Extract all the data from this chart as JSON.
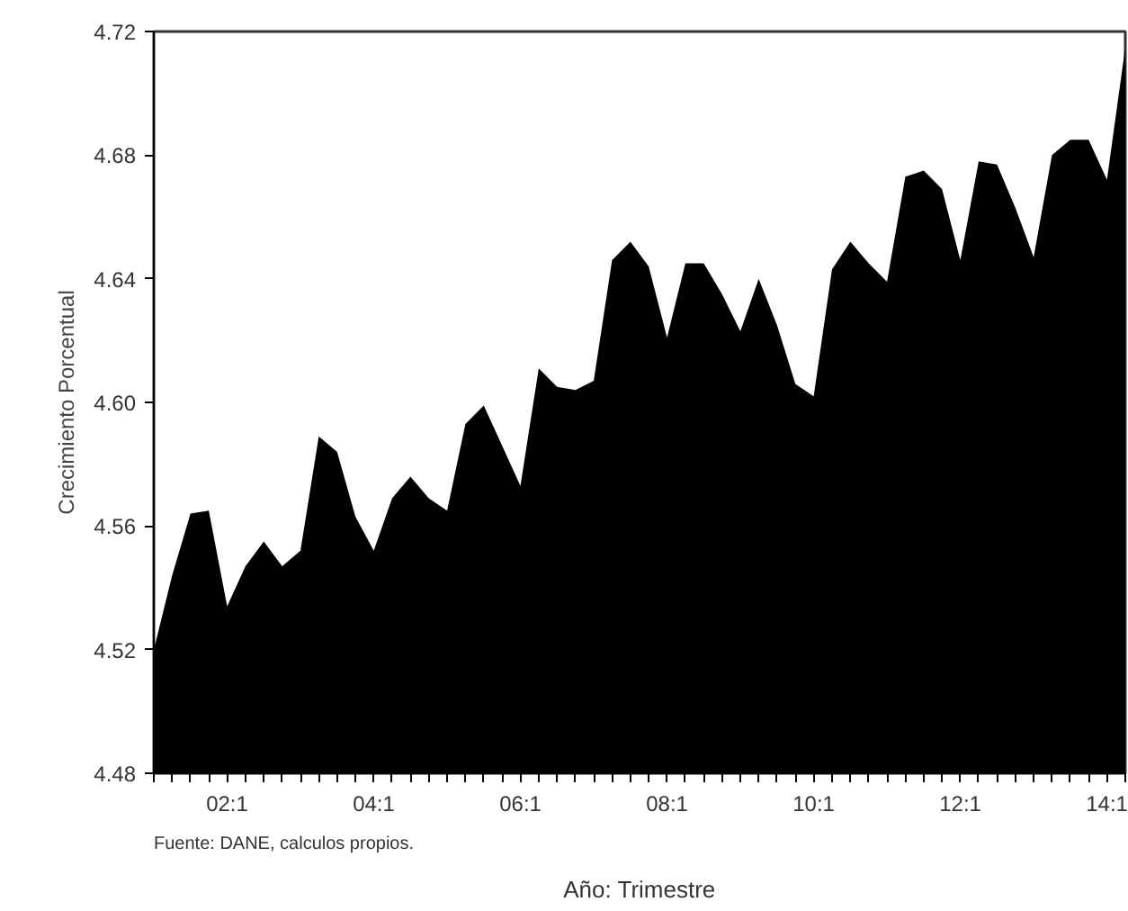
{
  "chart_data": {
    "type": "area",
    "xlabel": "Año: Trimestre",
    "ylabel": "Crecimiento Porcentual",
    "annotations": [
      "Fuente: DANE, calculos propios."
    ],
    "categories": [
      null,
      null,
      null,
      null,
      "02:1",
      null,
      null,
      null,
      null,
      null,
      null,
      null,
      "04:1",
      null,
      null,
      null,
      null,
      null,
      null,
      null,
      "06:1",
      null,
      null,
      null,
      null,
      null,
      null,
      null,
      "08:1",
      null,
      null,
      null,
      null,
      null,
      null,
      null,
      "10:1",
      null,
      null,
      null,
      null,
      null,
      null,
      null,
      "12:1",
      null,
      null,
      null,
      null,
      null,
      null,
      null,
      "14:1",
      null
    ],
    "series": [
      {
        "color": "#000000",
        "values": [
          4.52,
          4.544,
          4.564,
          4.565,
          4.534,
          4.547,
          4.555,
          4.547,
          4.552,
          4.589,
          4.584,
          4.563,
          4.552,
          4.569,
          4.576,
          4.569,
          4.565,
          4.593,
          4.599,
          4.586,
          4.573,
          4.611,
          4.605,
          4.604,
          4.607,
          4.646,
          4.652,
          4.644,
          4.621,
          4.645,
          4.645,
          4.635,
          4.623,
          4.64,
          4.625,
          4.606,
          4.602,
          4.643,
          4.652,
          4.645,
          4.639,
          4.673,
          4.675,
          4.669,
          4.646,
          4.678,
          4.677,
          4.663,
          4.647,
          4.68,
          4.685,
          4.685,
          4.672,
          4.715
        ]
      }
    ],
    "ylim": [
      4.48,
      4.72
    ],
    "yticks": [
      {
        "value": 4.48,
        "label": "4.48"
      },
      {
        "value": 4.52,
        "label": "4.52"
      },
      {
        "value": 4.56,
        "label": "4.56"
      },
      {
        "value": 4.6,
        "label": "4.60"
      },
      {
        "value": 4.64,
        "label": "4.64"
      },
      {
        "value": 4.68,
        "label": "4.68"
      },
      {
        "value": 4.72,
        "label": "4.72"
      }
    ],
    "grid": false
  }
}
